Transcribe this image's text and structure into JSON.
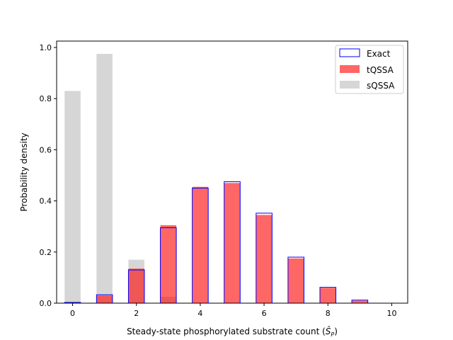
{
  "chart_data": {
    "type": "bar",
    "xlabel": "Steady-state phosphorylated substrate count (",
    "xlabel_symbol": "Ŝ",
    "xlabel_subscript": "P",
    "xlabel_close": ")",
    "ylabel": "Probability density",
    "xlim": [
      -0.5,
      10.5
    ],
    "ylim": [
      0,
      1.025
    ],
    "xticks": [
      0,
      2,
      4,
      6,
      8,
      10
    ],
    "xtick_labels": [
      "0",
      "2",
      "4",
      "6",
      "8",
      "10"
    ],
    "yticks": [
      0.0,
      0.2,
      0.4,
      0.6,
      0.8,
      1.0
    ],
    "ytick_labels": [
      "0.0",
      "0.2",
      "0.4",
      "0.6",
      "0.8",
      "1.0"
    ],
    "bar_width": 0.5,
    "legend_position": "top-right",
    "series": [
      {
        "name": "sQSSA",
        "color": "#d6d6d6",
        "style": "filled",
        "x": [
          0,
          1,
          2,
          3,
          4,
          5,
          6,
          7,
          8,
          9,
          10
        ],
        "values": [
          0.83,
          0.975,
          0.17,
          0.025,
          0.0,
          0.0,
          0.0,
          0.0,
          0.0,
          0.0,
          0.0
        ]
      },
      {
        "name": "tQSSA",
        "color": "#ff0000",
        "opacity": 0.6,
        "style": "filled",
        "x": [
          0,
          1,
          2,
          3,
          4,
          5,
          6,
          7,
          8,
          9,
          10
        ],
        "values": [
          0.0,
          0.03,
          0.135,
          0.305,
          0.455,
          0.47,
          0.345,
          0.175,
          0.06,
          0.01,
          0.0
        ]
      },
      {
        "name": "Exact",
        "color": "#0000ff",
        "style": "outline",
        "x": [
          0,
          1,
          2,
          3,
          4,
          5,
          6,
          7,
          8,
          9,
          10
        ],
        "values": [
          0.003,
          0.033,
          0.13,
          0.295,
          0.45,
          0.475,
          0.352,
          0.18,
          0.062,
          0.012,
          0.0
        ]
      }
    ]
  }
}
